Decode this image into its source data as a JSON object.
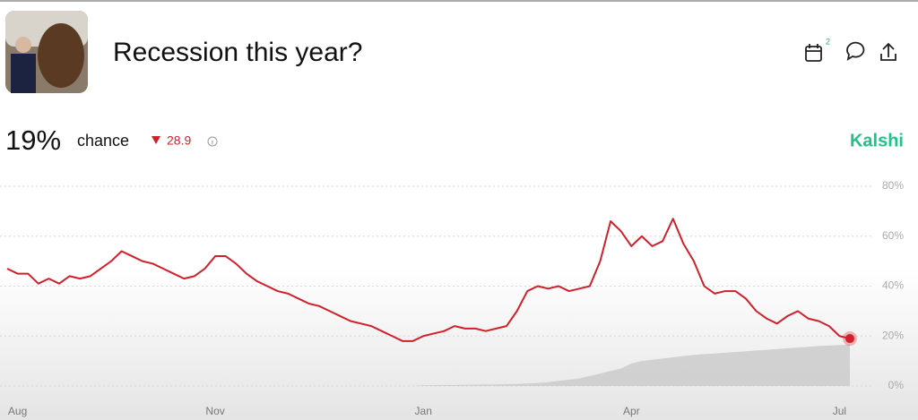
{
  "chart_data": {
    "type": "line",
    "title": "Recession this year?",
    "headline": "19%",
    "headline_suffix": "chance",
    "change": "28.9",
    "source": "Kalshi",
    "calendar_badge": "2",
    "categories": [
      null,
      "Aug",
      null,
      null,
      null,
      null,
      null,
      null,
      null,
      null,
      null,
      null,
      null,
      null,
      null,
      null,
      null,
      null,
      null,
      null,
      "Nov",
      null,
      null,
      null,
      null,
      null,
      null,
      null,
      null,
      null,
      null,
      null,
      null,
      null,
      null,
      null,
      null,
      null,
      null,
      null,
      "Jan",
      null,
      null,
      null,
      null,
      null,
      null,
      null,
      null,
      null,
      null,
      null,
      null,
      null,
      null,
      null,
      null,
      null,
      null,
      null,
      "Apr",
      null,
      null,
      null,
      null,
      null,
      null,
      null,
      null,
      null,
      null,
      null,
      null,
      null,
      null,
      null,
      null,
      null,
      null,
      null,
      "Jul",
      null
    ],
    "series": [
      {
        "color": "#d0202a",
        "values": [
          47,
          45,
          45,
          41,
          43,
          41,
          44,
          43,
          44,
          47,
          50,
          54,
          52,
          50,
          49,
          47,
          45,
          43,
          44,
          47,
          52,
          52,
          49,
          45,
          42,
          40,
          38,
          37,
          35,
          33,
          32,
          30,
          28,
          26,
          25,
          24,
          22,
          20,
          18,
          18,
          20,
          21,
          22,
          24,
          23,
          23,
          22,
          23,
          24,
          30,
          38,
          40,
          39,
          40,
          38,
          39,
          40,
          50,
          66,
          62,
          56,
          60,
          56,
          58,
          67,
          57,
          50,
          40,
          37,
          38,
          38,
          35,
          30,
          27,
          25,
          28,
          30,
          27,
          26,
          24,
          20,
          19
        ]
      },
      {
        "color": "#c9c9c9",
        "values": [
          0,
          0,
          0,
          0,
          0,
          0,
          0,
          0,
          0,
          0,
          0,
          0,
          0,
          0,
          0,
          0,
          0,
          0,
          0,
          0,
          0,
          0,
          0,
          0,
          0,
          0,
          0,
          0,
          0,
          0,
          0,
          0,
          0,
          0,
          0,
          0,
          0,
          0,
          0,
          0,
          0.3,
          0.3,
          0.4,
          0.4,
          0.5,
          0.5,
          0.6,
          0.6,
          0.7,
          0.8,
          1,
          1.2,
          1.5,
          2,
          2.5,
          3,
          4,
          5,
          6,
          7,
          9,
          10,
          10.5,
          11,
          11.5,
          12,
          12.4,
          12.8,
          13,
          13.3,
          13.6,
          13.9,
          14.2,
          14.5,
          14.8,
          15.1,
          15.4,
          15.7,
          16,
          16.2,
          16.4,
          16.6
        ]
      }
    ],
    "ylim": [
      0,
      80
    ],
    "yticks": [
      {
        "value": 0,
        "label": "0%"
      },
      {
        "value": 20,
        "label": "20%"
      },
      {
        "value": 40,
        "label": "40%"
      },
      {
        "value": 60,
        "label": "60%"
      },
      {
        "value": 80,
        "label": "80%"
      }
    ],
    "grid": true
  }
}
